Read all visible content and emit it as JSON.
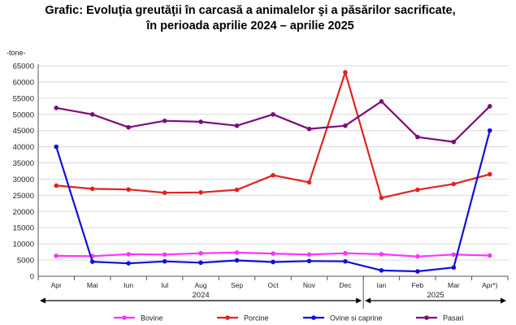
{
  "chart_data": {
    "type": "line",
    "title_line1": "Grafic: Evoluţia greutăţii în carcasă a animalelor şi a păsărilor sacrificate,",
    "title_line2": "în perioada aprilie 2024 – aprilie 2025",
    "unit_label": "-tone-",
    "ylim": [
      0,
      65000
    ],
    "yticks": [
      "0",
      "5000",
      "10000",
      "15000",
      "20000",
      "25000",
      "30000",
      "35000",
      "40000",
      "45000",
      "50000",
      "55000",
      "60000",
      "65000"
    ],
    "categories": [
      "Apr",
      "Mai",
      "Iun",
      "Iul",
      "Aug",
      "Sep",
      "Oct",
      "Nov",
      "Dec",
      "Ian",
      "Feb",
      "Mar",
      "Apr*)"
    ],
    "year_groups": [
      {
        "label": "2024",
        "start": 0,
        "end": 8
      },
      {
        "label": "2025",
        "start": 9,
        "end": 12
      }
    ],
    "grid": true,
    "legend_position": "bottom",
    "series": [
      {
        "name": "Bovine",
        "color": "#ff33ff",
        "values": [
          6300,
          6200,
          6800,
          6700,
          7100,
          7300,
          7000,
          6700,
          7100,
          6800,
          6100,
          6700,
          6400
        ]
      },
      {
        "name": "Porcine",
        "color": "#e32222",
        "values": [
          28000,
          27000,
          26800,
          25800,
          25900,
          26700,
          31200,
          29000,
          63000,
          24200,
          26700,
          28500,
          31500
        ]
      },
      {
        "name": "Ovine si caprine",
        "color": "#1010dd",
        "values": [
          40000,
          4500,
          4000,
          4600,
          4200,
          4900,
          4400,
          4700,
          4600,
          1800,
          1500,
          2700,
          45000
        ]
      },
      {
        "name": "Pasari",
        "color": "#7a0e7a",
        "values": [
          52000,
          50000,
          46000,
          48000,
          47700,
          46500,
          50000,
          45500,
          46500,
          54000,
          43000,
          41500,
          52500
        ]
      }
    ]
  }
}
